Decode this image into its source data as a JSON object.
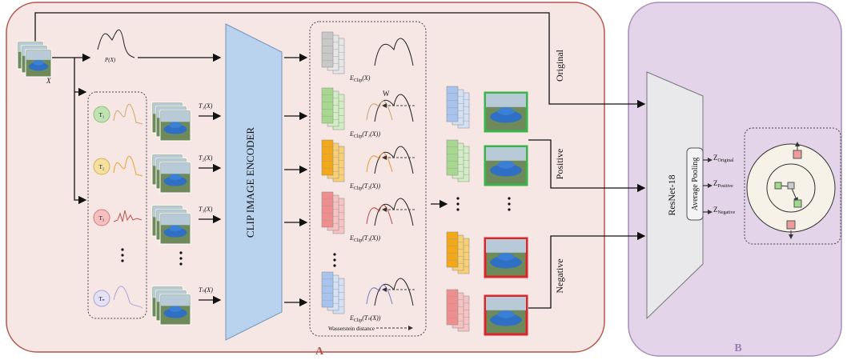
{
  "panel_a": {
    "label": "A",
    "input": {
      "label": "X",
      "distribution": "P(X)"
    },
    "transforms": [
      {
        "name": "T₁",
        "output": "T₁(X)"
      },
      {
        "name": "T₂",
        "output": "T₂(X)"
      },
      {
        "name": "T₃",
        "output": "T₃(X)"
      },
      {
        "name": "Tₙ",
        "output": "Tₙ(X)"
      }
    ],
    "encoder": "CLIP IMAGE ENCODER",
    "embeddings": [
      {
        "symbol": "E",
        "subscript": "Clip",
        "arg": "(X)"
      },
      {
        "symbol": "E",
        "subscript": "Clip",
        "arg": "(T₁(X))"
      },
      {
        "symbol": "E",
        "subscript": "Clip",
        "arg": "(T₂(X))"
      },
      {
        "symbol": "E",
        "subscript": "Clip",
        "arg": "(T₃(X))"
      },
      {
        "symbol": "E",
        "subscript": "Clip",
        "arg": "(Tₙ(X))"
      }
    ],
    "wasserstein_symbol": "W",
    "wasserstein_legend": "Wasserstein distance"
  },
  "branches": [
    "Original",
    "Positive",
    "Negative"
  ],
  "panel_b": {
    "label": "B",
    "backbone": "ResNet-18",
    "pooling": "Average Pooling",
    "outputs": [
      {
        "symbol": "Z",
        "subscript": "Original"
      },
      {
        "symbol": "Z",
        "subscript": "Positive"
      },
      {
        "symbol": "Z",
        "subscript": "Negative"
      }
    ]
  }
}
